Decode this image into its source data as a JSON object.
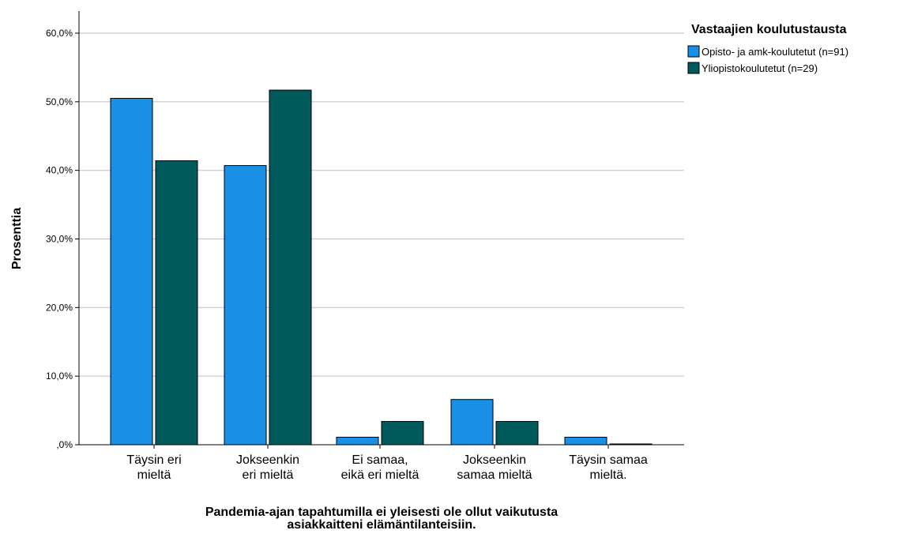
{
  "chart_data": {
    "type": "bar",
    "categories": [
      [
        "Täysin eri",
        "mieltä"
      ],
      [
        "Jokseenkin",
        "eri mieltä"
      ],
      [
        "Ei samaa,",
        "eikä eri mieltä"
      ],
      [
        "Jokseenkin",
        "samaa mieltä"
      ],
      [
        "Täysin samaa",
        "mieltä."
      ]
    ],
    "series": [
      {
        "name": "Opisto- ja amk-koulutetut (n=91)",
        "color": "#1790e6",
        "values": [
          50.5,
          40.7,
          1.1,
          6.6,
          1.1
        ]
      },
      {
        "name": "Yliopistokoulutetut (n=29)",
        "color": "#005a5c",
        "values": [
          41.4,
          51.7,
          3.4,
          3.4,
          0.0
        ]
      }
    ],
    "xlabel": [
      "Pandemia-ajan tapahtumilla ei yleisesti ole ollut vaikutusta",
      "asiakkaitteni elämäntilanteisiin."
    ],
    "ylabel": "Prosenttia",
    "ylim": [
      0,
      60
    ],
    "yticks": [
      0,
      10,
      20,
      30,
      40,
      50,
      60
    ],
    "ytick_labels": [
      ",0%",
      "10,0%",
      "20,0%",
      "30,0%",
      "40,0%",
      "50,0%",
      "60,0%"
    ],
    "legend_title": "Vastaajien koulutustausta",
    "legend_position": "top-right",
    "grid": "horizontal"
  }
}
